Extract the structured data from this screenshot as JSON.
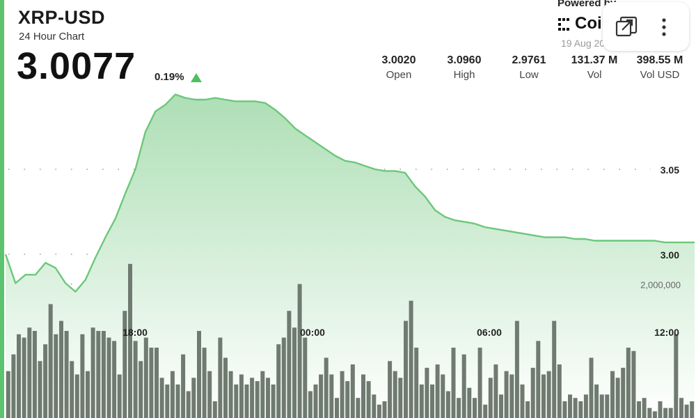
{
  "header": {
    "pair": "XRP-USD",
    "subtitle": "24 Hour Chart",
    "price": "3.0077",
    "change": "0.19%"
  },
  "stats": [
    {
      "value": "3.0020",
      "label": "Open"
    },
    {
      "value": "3.0960",
      "label": "High"
    },
    {
      "value": "2.9761",
      "label": "Low"
    },
    {
      "value": "131.37 M",
      "label": "Vol"
    },
    {
      "value": "398.55 M",
      "label": "Vol USD"
    }
  ],
  "branding": {
    "powered_by": "Powered by",
    "brand_name": "Coin",
    "date": "19 Aug 20"
  },
  "toolbar": {
    "expand_icon": "expand-window-icon",
    "menu_icon": "more-vertical-icon"
  },
  "colors": {
    "accent": "#5cc46e",
    "line": "#6cc77a",
    "fill": "#bfe6c4",
    "volume": "#6f7a70"
  },
  "chart_data": [
    {
      "type": "area",
      "x_ticks": [
        "18:00",
        "00:00",
        "06:00",
        "12:00"
      ],
      "y_ticks": [
        "3.05",
        "3.00"
      ],
      "ylim": [
        2.97,
        3.1
      ],
      "grid": true,
      "values": [
        3.0,
        2.983,
        2.988,
        2.988,
        2.995,
        2.992,
        2.983,
        2.978,
        2.985,
        2.998,
        3.01,
        3.021,
        3.036,
        3.05,
        3.072,
        3.084,
        3.088,
        3.094,
        3.092,
        3.091,
        3.091,
        3.092,
        3.091,
        3.09,
        3.09,
        3.09,
        3.089,
        3.085,
        3.08,
        3.074,
        3.07,
        3.066,
        3.062,
        3.058,
        3.055,
        3.054,
        3.052,
        3.05,
        3.049,
        3.049,
        3.048,
        3.04,
        3.034,
        3.026,
        3.022,
        3.02,
        3.019,
        3.018,
        3.016,
        3.015,
        3.014,
        3.013,
        3.012,
        3.011,
        3.01,
        3.01,
        3.01,
        3.009,
        3.009,
        3.008,
        3.008,
        3.008,
        3.008,
        3.008,
        3.008,
        3.008,
        3.007,
        3.007,
        3.007,
        3.007
      ]
    },
    {
      "type": "bar",
      "name_hidden": "",
      "y_ticks": [
        "2,000,000"
      ],
      "ylim": [
        0,
        2600000
      ],
      "values": [
        700000,
        950000,
        1250000,
        1200000,
        1350000,
        1300000,
        850000,
        1100000,
        1700000,
        1250000,
        1450000,
        1300000,
        850000,
        650000,
        1250000,
        700000,
        1350000,
        1300000,
        1300000,
        1200000,
        1150000,
        650000,
        1600000,
        2300000,
        1150000,
        850000,
        1200000,
        1050000,
        1050000,
        600000,
        500000,
        700000,
        500000,
        950000,
        400000,
        600000,
        1300000,
        1050000,
        700000,
        250000,
        1200000,
        900000,
        700000,
        500000,
        650000,
        500000,
        600000,
        550000,
        700000,
        600000,
        500000,
        1100000,
        1200000,
        1600000,
        1350000,
        2000000,
        1200000,
        400000,
        500000,
        650000,
        900000,
        650000,
        300000,
        700000,
        550000,
        800000,
        300000,
        650000,
        550000,
        350000,
        200000,
        250000,
        850000,
        700000,
        600000,
        1450000,
        1750000,
        1050000,
        500000,
        750000,
        500000,
        800000,
        650000,
        400000,
        1050000,
        300000,
        950000,
        450000,
        300000,
        1050000,
        200000,
        600000,
        800000,
        350000,
        700000,
        650000,
        1450000,
        500000,
        250000,
        750000,
        1150000,
        650000,
        700000,
        1450000,
        800000,
        250000,
        350000,
        300000,
        250000,
        350000,
        900000,
        500000,
        350000,
        350000,
        700000,
        600000,
        750000,
        1050000,
        1000000,
        250000,
        300000,
        150000,
        100000,
        250000,
        150000,
        150000,
        1250000,
        300000,
        200000,
        250000
      ]
    }
  ]
}
